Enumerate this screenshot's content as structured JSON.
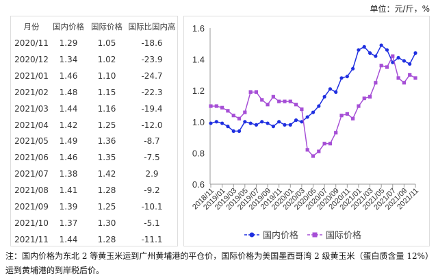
{
  "unit_label": "单位：元/斤，%",
  "table": {
    "headers": [
      "月份",
      "国内价格",
      "国际价格",
      "国际比国内高"
    ],
    "rows": [
      [
        "2020/11",
        "1.29",
        "1.05",
        "-18.6"
      ],
      [
        "2020/12",
        "1.34",
        "1.02",
        "-23.9"
      ],
      [
        "2021/01",
        "1.46",
        "1.10",
        "-24.7"
      ],
      [
        "2021/02",
        "1.48",
        "1.15",
        "-22.3"
      ],
      [
        "2021/03",
        "1.44",
        "1.16",
        "-19.4"
      ],
      [
        "2021/04",
        "1.42",
        "1.25",
        "-12.0"
      ],
      [
        "2021/05",
        "1.49",
        "1.36",
        "-8.7"
      ],
      [
        "2021/06",
        "1.46",
        "1.35",
        "-7.5"
      ],
      [
        "2021/07",
        "1.38",
        "1.42",
        "2.9"
      ],
      [
        "2021/08",
        "1.41",
        "1.28",
        "-9.2"
      ],
      [
        "2021/09",
        "1.39",
        "1.25",
        "-10.1"
      ],
      [
        "2021/10",
        "1.37",
        "1.30",
        "-5.1"
      ],
      [
        "2021/11",
        "1.44",
        "1.28",
        "-11.1"
      ]
    ]
  },
  "chart_data": {
    "type": "line",
    "x": [
      "2018/11",
      "2018/12",
      "2019/01",
      "2019/02",
      "2019/03",
      "2019/04",
      "2019/05",
      "2019/06",
      "2019/07",
      "2019/08",
      "2019/09",
      "2019/10",
      "2019/11",
      "2019/12",
      "2020/01",
      "2020/02",
      "2020/03",
      "2020/04",
      "2020/05",
      "2020/06",
      "2020/07",
      "2020/08",
      "2020/09",
      "2020/10",
      "2020/11",
      "2020/12",
      "2021/01",
      "2021/02",
      "2021/03",
      "2021/04",
      "2021/05",
      "2021/06",
      "2021/07",
      "2021/08",
      "2021/09",
      "2021/10",
      "2021/11"
    ],
    "xtick_labels": [
      "2018/11",
      "2019/01",
      "2019/03",
      "2019/05",
      "2019/07",
      "2019/09",
      "2019/11",
      "2020/01",
      "2020/03",
      "2020/05",
      "2020/07",
      "2020/09",
      "2020/11",
      "2021/01",
      "2021/03",
      "2021/05",
      "2021/07",
      "2021/09",
      "2021/11"
    ],
    "ylim": [
      0.6,
      1.6
    ],
    "yticks": [
      "0.6",
      "0.8",
      "1.0",
      "1.2",
      "1.4",
      "1.6"
    ],
    "grid": false,
    "legend_placement": "bottom",
    "series": [
      {
        "name": "国内价格",
        "color": "#1f2fe0",
        "marker": "circle",
        "values": [
          0.99,
          1.0,
          0.99,
          0.97,
          0.94,
          0.94,
          1.0,
          0.99,
          0.98,
          1.0,
          0.99,
          0.97,
          1.0,
          0.98,
          0.98,
          1.01,
          1.0,
          1.03,
          1.06,
          1.1,
          1.16,
          1.21,
          1.19,
          1.28,
          1.29,
          1.34,
          1.46,
          1.48,
          1.44,
          1.42,
          1.49,
          1.46,
          1.38,
          1.41,
          1.39,
          1.37,
          1.44
        ]
      },
      {
        "name": "国际价格",
        "color": "#a64fd6",
        "marker": "square",
        "values": [
          1.1,
          1.1,
          1.09,
          1.07,
          1.04,
          1.02,
          1.06,
          1.19,
          1.19,
          1.14,
          1.11,
          1.16,
          1.13,
          1.13,
          1.13,
          1.11,
          1.08,
          0.82,
          0.78,
          0.81,
          0.86,
          0.86,
          0.93,
          1.04,
          1.05,
          1.02,
          1.1,
          1.15,
          1.16,
          1.25,
          1.36,
          1.35,
          1.42,
          1.28,
          1.25,
          1.3,
          1.28
        ]
      }
    ]
  },
  "note": "注：国内价格为东北 2 等黄玉米运到广州黄埔港的平仓价，国际价格为美国墨西哥湾 2 级黄玉米（蛋白质含量 12%）运到黄埔港的到岸税后价。"
}
